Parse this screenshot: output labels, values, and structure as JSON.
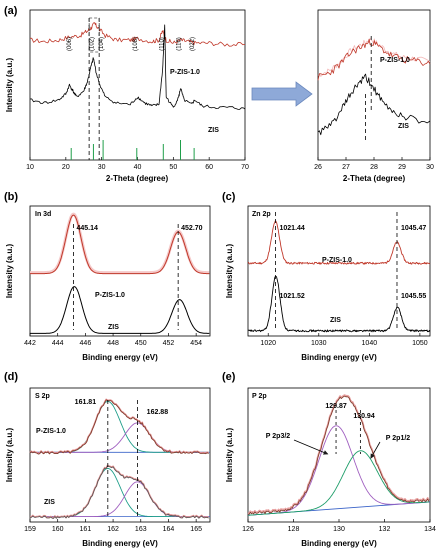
{
  "chart_data": [
    {
      "id": "a-main",
      "type": "line",
      "panel_label": "(a)",
      "xlabel": "2-Theta (degree)",
      "ylabel": "Intensity (a.u.)",
      "xlim": [
        10,
        70
      ],
      "xticks": [
        "10",
        "20",
        "30",
        "40",
        "50",
        "60",
        "70"
      ],
      "series": [
        {
          "name": "P-ZIS-1.0",
          "color": "#c0392b",
          "x": [
            10,
            14,
            18,
            21,
            24,
            26,
            27,
            28,
            29,
            31,
            34,
            38,
            40,
            44,
            46,
            47,
            48,
            50,
            52,
            54,
            56,
            60,
            65,
            70
          ],
          "y": [
            0.8,
            0.79,
            0.8,
            0.82,
            0.83,
            0.86,
            0.88,
            0.91,
            0.88,
            0.83,
            0.8,
            0.8,
            0.81,
            0.79,
            0.8,
            0.86,
            0.8,
            0.78,
            0.8,
            0.79,
            0.78,
            0.78,
            0.77,
            0.77
          ]
        },
        {
          "name": "ZIS",
          "color": "#000000",
          "x": [
            10,
            14,
            18,
            20,
            21,
            22,
            23,
            25,
            26,
            27,
            27.7,
            28.5,
            29.5,
            31,
            34,
            38,
            40,
            42,
            44,
            46,
            47,
            47.6,
            48,
            50,
            51.5,
            52,
            53,
            55,
            56,
            58,
            62,
            66,
            70
          ],
          "y": [
            0.4,
            0.38,
            0.4,
            0.44,
            0.5,
            0.46,
            0.42,
            0.46,
            0.52,
            0.62,
            0.68,
            0.58,
            0.5,
            0.42,
            0.38,
            0.37,
            0.42,
            0.38,
            0.36,
            0.37,
            0.6,
            0.9,
            0.42,
            0.35,
            0.42,
            0.48,
            0.4,
            0.37,
            0.4,
            0.36,
            0.35,
            0.35,
            0.34
          ]
        }
      ],
      "peak_labels": [
        "(006)",
        "(102)",
        "(104)",
        "(108)",
        "(110)",
        "(116)",
        "(022)"
      ],
      "peak_x": [
        21.5,
        27.7,
        30.4,
        39.8,
        47.2,
        52.0,
        55.8
      ],
      "reference_sticks_x": [
        21.5,
        27.7,
        30.4,
        39.8,
        47.2,
        52.0,
        55.8
      ]
    },
    {
      "id": "a-zoom",
      "type": "line",
      "xlabel": "2-Theta (degree)",
      "xlim": [
        26,
        30
      ],
      "xticks": [
        "26",
        "27",
        "28",
        "29",
        "30"
      ],
      "series": [
        {
          "name": "P-ZIS-1.0",
          "color": "#c0392b",
          "x": [
            26,
            26.4,
            26.8,
            27.2,
            27.6,
            27.9,
            28.2,
            28.6,
            29,
            29.5,
            30
          ],
          "y": [
            0.55,
            0.58,
            0.64,
            0.72,
            0.76,
            0.79,
            0.75,
            0.7,
            0.67,
            0.66,
            0.64
          ]
        },
        {
          "name": "ZIS",
          "color": "#000000",
          "x": [
            26,
            26.4,
            26.8,
            27.1,
            27.4,
            27.7,
            28,
            28.3,
            28.7,
            29.2,
            30
          ],
          "y": [
            0.18,
            0.22,
            0.32,
            0.42,
            0.5,
            0.55,
            0.48,
            0.38,
            0.32,
            0.28,
            0.26
          ]
        }
      ],
      "markers_x": [
        27.7,
        27.9
      ]
    },
    {
      "id": "b",
      "type": "line",
      "panel_label": "(b)",
      "title": "In 3d",
      "xlabel": "Binding energy (eV)",
      "ylabel": "Intensity (a.u.)",
      "xlim": [
        442,
        455
      ],
      "xticks": [
        "442",
        "444",
        "446",
        "448",
        "450",
        "452",
        "454"
      ],
      "peaks_top": [
        "445.14",
        "452.70"
      ],
      "peaks_bottom_x": [
        445.2,
        452.8
      ],
      "series": [
        {
          "name": "P-ZIS-1.0",
          "color": "#c0392b",
          "centers": [
            445.14,
            452.7
          ],
          "amps": [
            0.45,
            0.32
          ],
          "width": 0.55,
          "base": 0.48
        },
        {
          "name": "ZIS",
          "color": "#000000",
          "centers": [
            445.2,
            452.8
          ],
          "amps": [
            0.36,
            0.26
          ],
          "width": 0.55,
          "base": 0.02
        }
      ]
    },
    {
      "id": "c",
      "type": "line",
      "panel_label": "(c)",
      "title": "Zn 2p",
      "xlabel": "Binding energy (eV)",
      "ylabel": "Intensity (a.u.)",
      "xlim": [
        1016,
        1052
      ],
      "xticks": [
        "1020",
        "1030",
        "1040",
        "1050"
      ],
      "peak_labels_top": [
        "1021.44",
        "1045.47"
      ],
      "peak_labels_bottom": [
        "1021.52",
        "1045.55"
      ],
      "series": [
        {
          "name": "P-ZIS-1.0",
          "color": "#c0392b",
          "centers": [
            1021.44,
            1045.47
          ],
          "amps": [
            0.32,
            0.16
          ],
          "width": 0.8,
          "base": 0.56
        },
        {
          "name": "ZIS",
          "color": "#000000",
          "centers": [
            1021.52,
            1045.55
          ],
          "amps": [
            0.42,
            0.18
          ],
          "width": 0.8,
          "base": 0.04
        }
      ]
    },
    {
      "id": "d",
      "type": "line",
      "panel_label": "(d)",
      "title": "S 2p",
      "xlabel": "Binding energy (eV)",
      "ylabel": "Intensity (a.u.)",
      "xlim": [
        159,
        165.5
      ],
      "xticks": [
        "159",
        "160",
        "161",
        "162",
        "163",
        "164",
        "165"
      ],
      "peak_labels": [
        "161.81",
        "162.88"
      ],
      "series": [
        {
          "name": "P-ZIS-1.0",
          "color": "#c0392b",
          "offset": 0.52,
          "centers": [
            161.81,
            162.88
          ],
          "amps": [
            0.38,
            0.22
          ],
          "width": 0.45
        },
        {
          "name": "ZIS",
          "color": "#000000",
          "offset": 0.04,
          "centers": [
            161.81,
            162.88
          ],
          "amps": [
            0.36,
            0.26
          ],
          "width": 0.45
        }
      ]
    },
    {
      "id": "e",
      "type": "line",
      "panel_label": "(e)",
      "title": "P 2p",
      "xlabel": "Binding energy (eV)",
      "ylabel": "Intensity (a.u.)",
      "xlim": [
        126,
        134
      ],
      "xticks": [
        "126",
        "128",
        "130",
        "132",
        "134"
      ],
      "peak_labels": [
        "129.87",
        "130.94"
      ],
      "component_labels": [
        "P 2p3/2",
        "P 2p1/2"
      ],
      "centers": [
        129.87,
        130.94
      ],
      "amps": [
        0.62,
        0.42
      ],
      "width": 0.75
    }
  ]
}
